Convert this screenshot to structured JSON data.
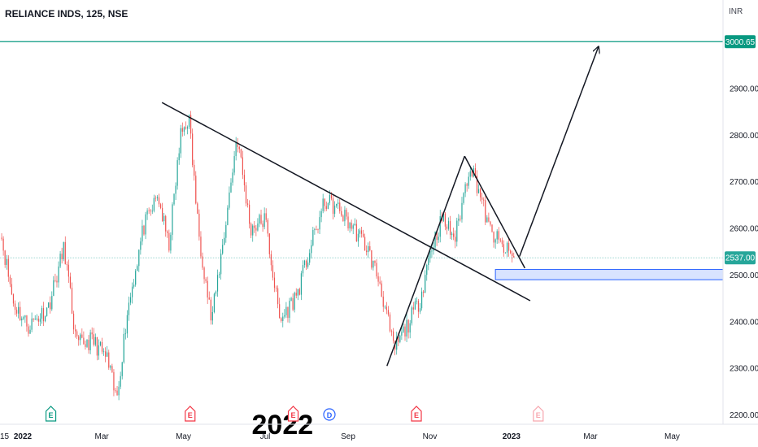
{
  "header": {
    "title": "RELIANCE INDS, 125, NSE",
    "currency": "INR"
  },
  "chart_data": {
    "type": "candlestick",
    "y_range": [
      2180,
      3090
    ],
    "y_ticks": [
      {
        "value": 2200,
        "label": "2200.00"
      },
      {
        "value": 2300,
        "label": "2300.00"
      },
      {
        "value": 2400,
        "label": "2400.00"
      },
      {
        "value": 2500,
        "label": "2500.00"
      },
      {
        "value": 2600,
        "label": "2600.00"
      },
      {
        "value": 2700,
        "label": "2700.00"
      },
      {
        "value": 2800,
        "label": "2800.00"
      },
      {
        "value": 2900,
        "label": "2900.00"
      }
    ],
    "x_ticks": [
      {
        "date": "2021-12-15",
        "label": "15"
      },
      {
        "date": "2022-01-01",
        "label": "2022",
        "bold": true
      },
      {
        "date": "2022-03-01",
        "label": "Mar"
      },
      {
        "date": "2022-05-01",
        "label": "May"
      },
      {
        "date": "2022-07-01",
        "label": "Jul"
      },
      {
        "date": "2022-09-01",
        "label": "Sep"
      },
      {
        "date": "2022-11-01",
        "label": "Nov"
      },
      {
        "date": "2023-01-01",
        "label": "2023",
        "bold": true
      },
      {
        "date": "2023-03-01",
        "label": "Mar"
      },
      {
        "date": "2023-05-01",
        "label": "May"
      }
    ],
    "x_range": [
      "2021-12-15",
      "2023-06-08"
    ],
    "price_path": [
      [
        "2021-12-15",
        2600
      ],
      [
        "2021-12-25",
        2440
      ],
      [
        "2022-01-05",
        2390
      ],
      [
        "2022-01-20",
        2430
      ],
      [
        "2022-02-01",
        2560
      ],
      [
        "2022-02-10",
        2350
      ],
      [
        "2022-02-22",
        2360
      ],
      [
        "2022-03-05",
        2320
      ],
      [
        "2022-03-12",
        2230
      ],
      [
        "2022-03-20",
        2420
      ],
      [
        "2022-04-01",
        2600
      ],
      [
        "2022-04-12",
        2670
      ],
      [
        "2022-04-20",
        2560
      ],
      [
        "2022-04-29",
        2800
      ],
      [
        "2022-05-05",
        2840
      ],
      [
        "2022-05-12",
        2600
      ],
      [
        "2022-05-22",
        2400
      ],
      [
        "2022-06-01",
        2600
      ],
      [
        "2022-06-10",
        2800
      ],
      [
        "2022-06-20",
        2600
      ],
      [
        "2022-07-01",
        2620
      ],
      [
        "2022-07-12",
        2400
      ],
      [
        "2022-07-25",
        2460
      ],
      [
        "2022-08-05",
        2570
      ],
      [
        "2022-08-15",
        2660
      ],
      [
        "2022-08-25",
        2640
      ],
      [
        "2022-09-05",
        2600
      ],
      [
        "2022-09-15",
        2560
      ],
      [
        "2022-09-25",
        2480
      ],
      [
        "2022-10-05",
        2340
      ],
      [
        "2022-10-15",
        2390
      ],
      [
        "2022-10-25",
        2450
      ],
      [
        "2022-11-01",
        2550
      ],
      [
        "2022-11-10",
        2620
      ],
      [
        "2022-11-20",
        2580
      ],
      [
        "2022-12-01",
        2740
      ],
      [
        "2022-12-08",
        2680
      ],
      [
        "2022-12-15",
        2600
      ],
      [
        "2022-12-25",
        2560
      ],
      [
        "2023-01-03",
        2537
      ]
    ],
    "candle_colors": {
      "up": "#26a69a",
      "down": "#ef5350"
    },
    "horizontal_line": {
      "value": 3000.65,
      "label": "3000.65",
      "color": "#089981"
    },
    "current_price": {
      "value": 2537,
      "label": "2537.00",
      "color": "#26a69a"
    },
    "support_zone": {
      "from": "2022-12-20",
      "to": "2023-06-08",
      "low": 2490,
      "high": 2512,
      "color": "#2962ff"
    },
    "lines": [
      {
        "name": "descending-trendline",
        "from": [
          "2022-04-15",
          2870
        ],
        "to": [
          "2023-01-15",
          2445
        ]
      },
      {
        "name": "rally-leg",
        "from": [
          "2022-09-30",
          2305
        ],
        "to": [
          "2022-11-27",
          2755
        ]
      },
      {
        "name": "pullback-leg",
        "from": [
          "2022-11-27",
          2755
        ],
        "to": [
          "2023-01-11",
          2515
        ]
      },
      {
        "name": "projection-arrow",
        "from": [
          "2023-01-07",
          2540
        ],
        "to": [
          "2023-03-07",
          2990
        ],
        "arrow": true
      }
    ],
    "events": [
      {
        "name": "earnings-marker",
        "date": "2022-01-22",
        "label": "E",
        "color": "#089981"
      },
      {
        "name": "earnings-marker",
        "date": "2022-05-06",
        "label": "E",
        "color": "#f23645"
      },
      {
        "name": "earnings-marker",
        "date": "2022-07-22",
        "label": "E",
        "color": "#f23645"
      },
      {
        "name": "dividend-marker",
        "date": "2022-08-18",
        "label": "D",
        "color": "#2962ff"
      },
      {
        "name": "earnings-marker",
        "date": "2022-10-22",
        "label": "E",
        "color": "#f23645"
      },
      {
        "name": "earnings-marker",
        "date": "2023-01-21",
        "label": "E",
        "color": "#f7a6ae"
      }
    ],
    "overlay_text": "2022"
  }
}
